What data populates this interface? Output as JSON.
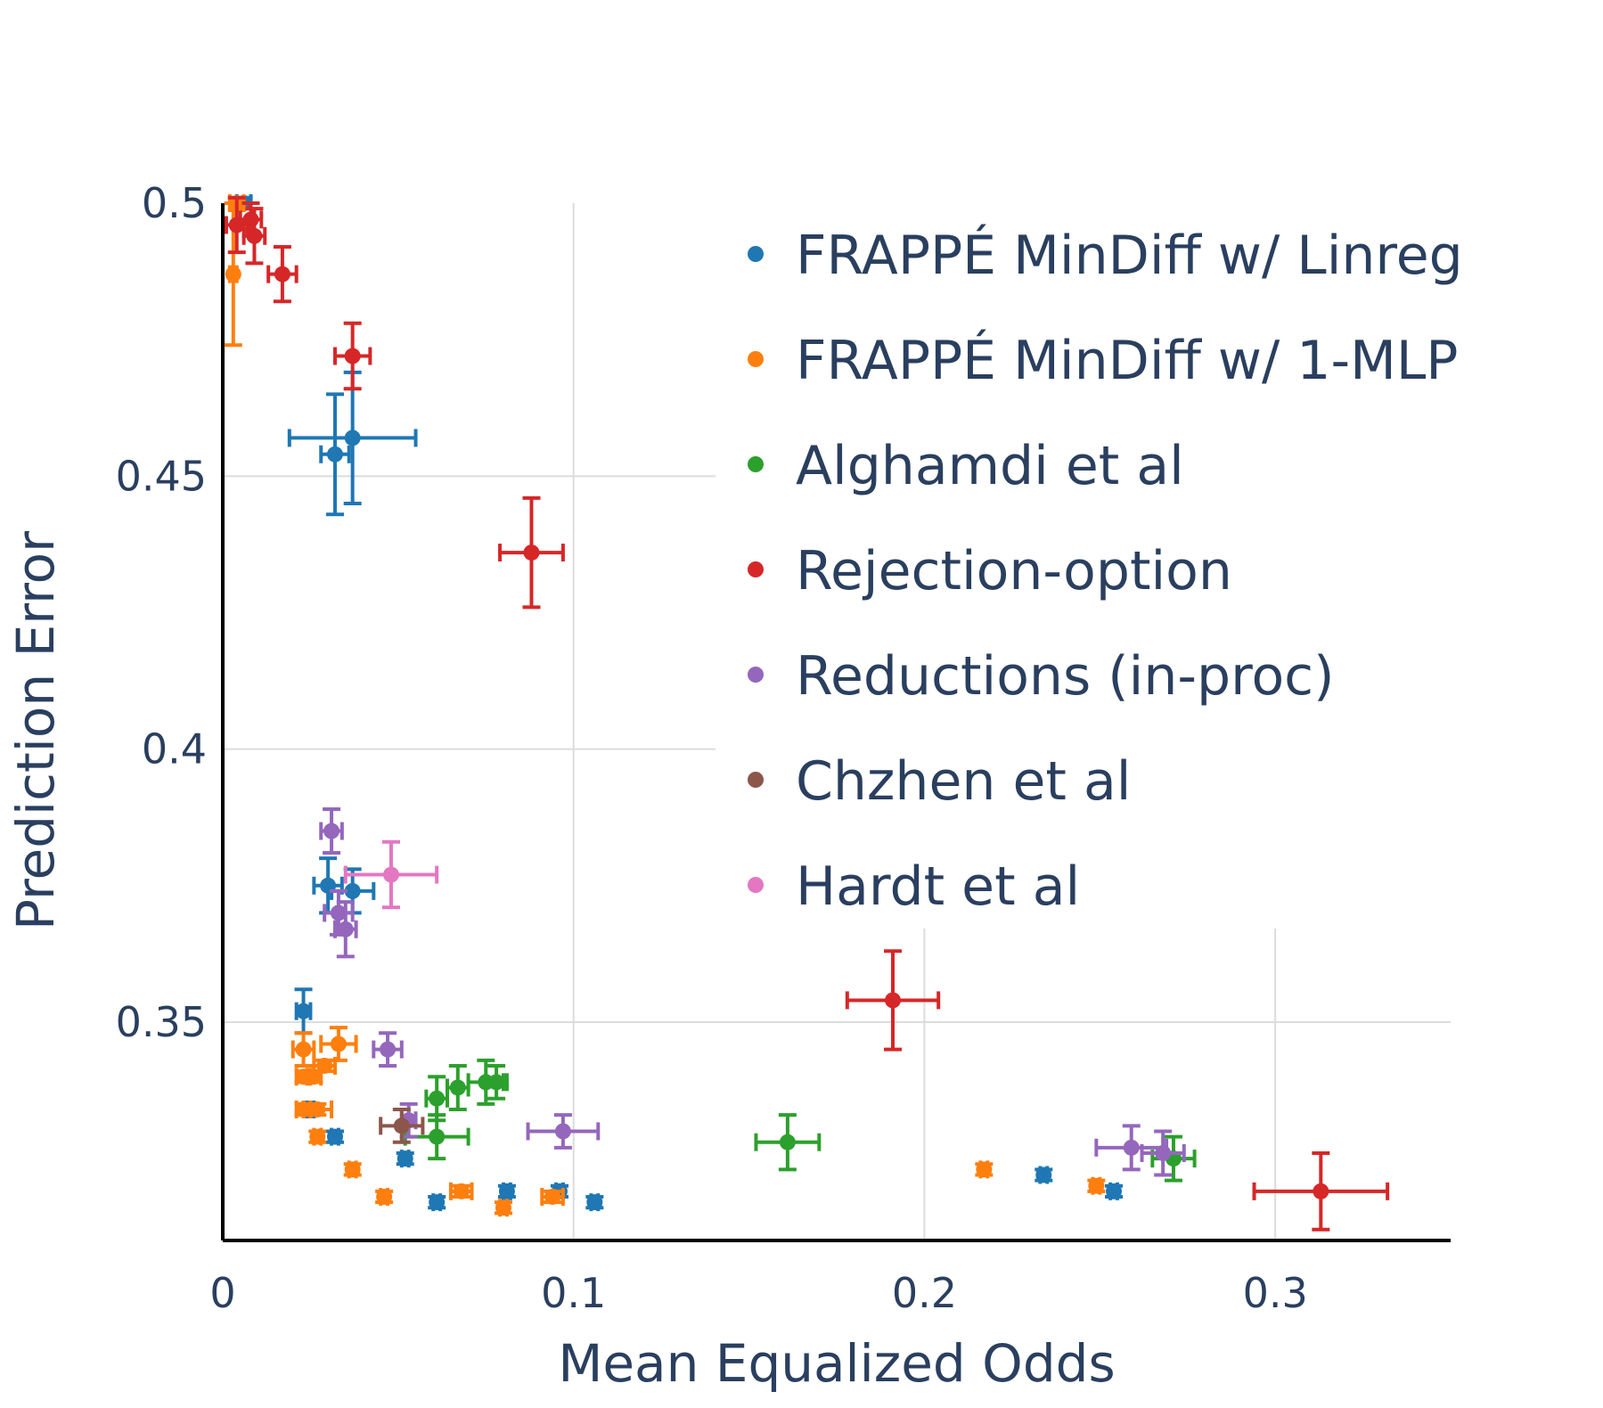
{
  "chart_data": {
    "type": "scatter",
    "title": "",
    "xlabel": "Mean Equalized Odds",
    "ylabel": "Prediction Error",
    "xlim": [
      0,
      0.35
    ],
    "ylim": [
      0.31,
      0.5
    ],
    "xticks": [
      {
        "value": 0,
        "label": "0"
      },
      {
        "value": 0.1,
        "label": "0.1"
      },
      {
        "value": 0.2,
        "label": "0.2"
      },
      {
        "value": 0.3,
        "label": "0.3"
      }
    ],
    "yticks": [
      {
        "value": 0.35,
        "label": "0.35"
      },
      {
        "value": 0.4,
        "label": "0.4"
      },
      {
        "value": 0.45,
        "label": "0.45"
      },
      {
        "value": 0.5,
        "label": "0.5"
      }
    ],
    "grid": true,
    "legend_position": "top-right",
    "series": [
      {
        "name": "FRAPPÉ MinDiff w/ Linreg",
        "color": "#1f77b4",
        "points": [
          {
            "x": 0.006,
            "y": 0.5,
            "xerr": 0.002,
            "yerr": 0.001
          },
          {
            "x": 0.032,
            "y": 0.454,
            "xerr": 0.004,
            "yerr": 0.011
          },
          {
            "x": 0.037,
            "y": 0.457,
            "xerr": 0.018,
            "yerr": 0.012
          },
          {
            "x": 0.03,
            "y": 0.375,
            "xerr": 0.004,
            "yerr": 0.005
          },
          {
            "x": 0.037,
            "y": 0.374,
            "xerr": 0.006,
            "yerr": 0.004
          },
          {
            "x": 0.023,
            "y": 0.352,
            "xerr": 0.002,
            "yerr": 0.004
          },
          {
            "x": 0.025,
            "y": 0.334,
            "xerr": 0.001,
            "yerr": 0.001
          },
          {
            "x": 0.032,
            "y": 0.329,
            "xerr": 0.001,
            "yerr": 0.001
          },
          {
            "x": 0.052,
            "y": 0.325,
            "xerr": 0.001,
            "yerr": 0.001
          },
          {
            "x": 0.061,
            "y": 0.317,
            "xerr": 0.001,
            "yerr": 0.001
          },
          {
            "x": 0.081,
            "y": 0.319,
            "xerr": 0.001,
            "yerr": 0.001
          },
          {
            "x": 0.096,
            "y": 0.319,
            "xerr": 0.001,
            "yerr": 0.001
          },
          {
            "x": 0.106,
            "y": 0.317,
            "xerr": 0.001,
            "yerr": 0.001
          },
          {
            "x": 0.234,
            "y": 0.322,
            "xerr": 0.001,
            "yerr": 0.001
          },
          {
            "x": 0.254,
            "y": 0.319,
            "xerr": 0.001,
            "yerr": 0.001
          }
        ]
      },
      {
        "name": "FRAPPÉ MinDiff w/ 1-MLP",
        "color": "#ff7f0e",
        "points": [
          {
            "x": 0.003,
            "y": 0.487,
            "xerr": 0.001,
            "yerr": 0.013
          },
          {
            "x": 0.004,
            "y": 0.5,
            "xerr": 0.002,
            "yerr": 0.001
          },
          {
            "x": 0.023,
            "y": 0.345,
            "xerr": 0.003,
            "yerr": 0.003
          },
          {
            "x": 0.033,
            "y": 0.346,
            "xerr": 0.005,
            "yerr": 0.003
          },
          {
            "x": 0.023,
            "y": 0.34,
            "xerr": 0.002,
            "yerr": 0.001
          },
          {
            "x": 0.026,
            "y": 0.34,
            "xerr": 0.002,
            "yerr": 0.001
          },
          {
            "x": 0.029,
            "y": 0.342,
            "xerr": 0.003,
            "yerr": 0.001
          },
          {
            "x": 0.023,
            "y": 0.334,
            "xerr": 0.002,
            "yerr": 0.001
          },
          {
            "x": 0.027,
            "y": 0.334,
            "xerr": 0.004,
            "yerr": 0.001
          },
          {
            "x": 0.027,
            "y": 0.329,
            "xerr": 0.001,
            "yerr": 0.001
          },
          {
            "x": 0.037,
            "y": 0.323,
            "xerr": 0.001,
            "yerr": 0.001
          },
          {
            "x": 0.046,
            "y": 0.318,
            "xerr": 0.001,
            "yerr": 0.001
          },
          {
            "x": 0.068,
            "y": 0.319,
            "xerr": 0.003,
            "yerr": 0.001
          },
          {
            "x": 0.08,
            "y": 0.316,
            "xerr": 0.001,
            "yerr": 0.001
          },
          {
            "x": 0.094,
            "y": 0.318,
            "xerr": 0.003,
            "yerr": 0.001
          },
          {
            "x": 0.217,
            "y": 0.323,
            "xerr": 0.001,
            "yerr": 0.001
          },
          {
            "x": 0.249,
            "y": 0.32,
            "xerr": 0.001,
            "yerr": 0.001
          }
        ]
      },
      {
        "name": "Alghamdi et al",
        "color": "#2ca02c",
        "points": [
          {
            "x": 0.061,
            "y": 0.329,
            "xerr": 0.009,
            "yerr": 0.004
          },
          {
            "x": 0.061,
            "y": 0.336,
            "xerr": 0.003,
            "yerr": 0.004
          },
          {
            "x": 0.067,
            "y": 0.338,
            "xerr": 0.003,
            "yerr": 0.004
          },
          {
            "x": 0.075,
            "y": 0.339,
            "xerr": 0.005,
            "yerr": 0.004
          },
          {
            "x": 0.078,
            "y": 0.339,
            "xerr": 0.003,
            "yerr": 0.003
          },
          {
            "x": 0.161,
            "y": 0.328,
            "xerr": 0.009,
            "yerr": 0.005
          },
          {
            "x": 0.271,
            "y": 0.325,
            "xerr": 0.006,
            "yerr": 0.004
          }
        ]
      },
      {
        "name": "Rejection-option",
        "color": "#d62728",
        "points": [
          {
            "x": 0.004,
            "y": 0.496,
            "xerr": 0.003,
            "yerr": 0.005
          },
          {
            "x": 0.008,
            "y": 0.497,
            "xerr": 0.003,
            "yerr": 0.003
          },
          {
            "x": 0.009,
            "y": 0.494,
            "xerr": 0.003,
            "yerr": 0.005
          },
          {
            "x": 0.017,
            "y": 0.487,
            "xerr": 0.004,
            "yerr": 0.005
          },
          {
            "x": 0.037,
            "y": 0.472,
            "xerr": 0.005,
            "yerr": 0.006
          },
          {
            "x": 0.088,
            "y": 0.436,
            "xerr": 0.009,
            "yerr": 0.01
          },
          {
            "x": 0.191,
            "y": 0.354,
            "xerr": 0.013,
            "yerr": 0.009
          },
          {
            "x": 0.313,
            "y": 0.319,
            "xerr": 0.019,
            "yerr": 0.007
          }
        ]
      },
      {
        "name": "Reductions (in-proc)",
        "color": "#9467bd",
        "points": [
          {
            "x": 0.031,
            "y": 0.385,
            "xerr": 0.003,
            "yerr": 0.004
          },
          {
            "x": 0.033,
            "y": 0.37,
            "xerr": 0.004,
            "yerr": 0.004
          },
          {
            "x": 0.035,
            "y": 0.367,
            "xerr": 0.003,
            "yerr": 0.005
          },
          {
            "x": 0.047,
            "y": 0.345,
            "xerr": 0.004,
            "yerr": 0.003
          },
          {
            "x": 0.053,
            "y": 0.332,
            "xerr": 0.002,
            "yerr": 0.003
          },
          {
            "x": 0.097,
            "y": 0.33,
            "xerr": 0.01,
            "yerr": 0.003
          },
          {
            "x": 0.259,
            "y": 0.327,
            "xerr": 0.01,
            "yerr": 0.004
          },
          {
            "x": 0.268,
            "y": 0.326,
            "xerr": 0.006,
            "yerr": 0.004
          }
        ]
      },
      {
        "name": "Chzhen et al",
        "color": "#8c564b",
        "points": [
          {
            "x": 0.051,
            "y": 0.331,
            "xerr": 0.006,
            "yerr": 0.003
          }
        ]
      },
      {
        "name": "Hardt et al",
        "color": "#e377c2",
        "points": [
          {
            "x": 0.048,
            "y": 0.377,
            "xerr": 0.013,
            "yerr": 0.006
          }
        ]
      }
    ]
  }
}
